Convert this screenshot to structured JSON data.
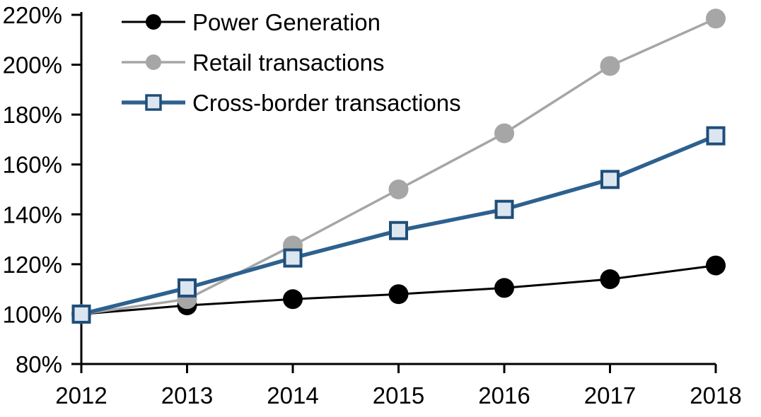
{
  "page": {
    "background_color": "#ffffff"
  },
  "chart_data": {
    "type": "line",
    "title": "",
    "xlabel": "",
    "ylabel": "",
    "x_categories": [
      "2012",
      "2013",
      "2014",
      "2015",
      "2016",
      "2017",
      "2018"
    ],
    "ylim": [
      80,
      220
    ],
    "ytick_step": 20,
    "ytick_suffix": "%",
    "ytick_labels": [
      "80%",
      "100%",
      "120%",
      "140%",
      "160%",
      "180%",
      "200%",
      "220%"
    ],
    "grid": false,
    "legend_position": "top-left",
    "axis_color": "#000000",
    "series": [
      {
        "name": "Power Generation",
        "values": [
          100,
          103.5,
          106,
          108,
          110.5,
          114,
          119.5
        ],
        "line_color": "#000000",
        "line_width": 3,
        "marker": "circle",
        "marker_fill": "#000000",
        "marker_border": "none"
      },
      {
        "name": "Retail transactions",
        "values": [
          100,
          106,
          127.5,
          150,
          172.5,
          199.5,
          218.5
        ],
        "line_color": "#a6a6a6",
        "line_width": 3.5,
        "marker": "circle",
        "marker_fill": "#a6a6a6",
        "marker_border": "none"
      },
      {
        "name": "Cross-border transactions",
        "values": [
          100,
          110.5,
          122.5,
          133.5,
          142,
          154,
          171.5
        ],
        "line_color": "#2d618f",
        "line_width": 5.5,
        "marker": "square",
        "marker_fill": "#dce6f1",
        "marker_border": "#1f4e79"
      }
    ]
  }
}
